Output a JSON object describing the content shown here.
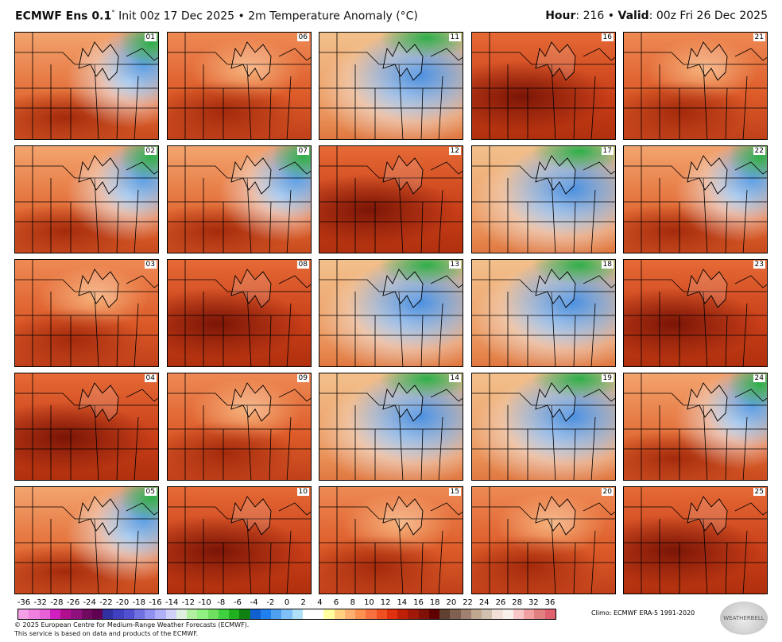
{
  "header": {
    "model": "ECMWF Ens 0.1",
    "degree": "°",
    "init": "Init 00z 17 Dec 2025",
    "sep": "•",
    "field": "2m Temperature Anomaly (°C)",
    "hour_label": "Hour",
    "hour": "216",
    "valid_label": "Valid",
    "valid": "00z Fri 26 Dec 2025"
  },
  "members": [
    {
      "id": "01",
      "style": "coolne"
    },
    {
      "id": "02",
      "style": "coolne"
    },
    {
      "id": "03",
      "style": "warm"
    },
    {
      "id": "04",
      "style": "hot"
    },
    {
      "id": "05",
      "style": "coolne"
    },
    {
      "id": "06",
      "style": "warm"
    },
    {
      "id": "07",
      "style": "coolne"
    },
    {
      "id": "08",
      "style": "hot"
    },
    {
      "id": "09",
      "style": "warm"
    },
    {
      "id": "10",
      "style": "hot"
    },
    {
      "id": "11",
      "style": "cold"
    },
    {
      "id": "12",
      "style": "hot"
    },
    {
      "id": "13",
      "style": "cold"
    },
    {
      "id": "14",
      "style": "cold"
    },
    {
      "id": "15",
      "style": "warm"
    },
    {
      "id": "16",
      "style": "hot"
    },
    {
      "id": "17",
      "style": "cold"
    },
    {
      "id": "18",
      "style": "cold"
    },
    {
      "id": "19",
      "style": "cold"
    },
    {
      "id": "20",
      "style": "warm"
    },
    {
      "id": "21",
      "style": "warm"
    },
    {
      "id": "22",
      "style": "coolne"
    },
    {
      "id": "23",
      "style": "hot"
    },
    {
      "id": "24",
      "style": "coolne"
    },
    {
      "id": "25",
      "style": "hot"
    }
  ],
  "colorbar": {
    "labels": [
      "-36",
      "-32",
      "-28",
      "-26",
      "-24",
      "-22",
      "-20",
      "-18",
      "-16",
      "-14",
      "-12",
      "-10",
      "-8",
      "-6",
      "-4",
      "-2",
      "0",
      "2",
      "4",
      "6",
      "8",
      "10",
      "12",
      "14",
      "16",
      "18",
      "20",
      "22",
      "24",
      "26",
      "28",
      "32",
      "36"
    ],
    "colors": [
      "#f3a0e6",
      "#f080e0",
      "#e860d8",
      "#d020c0",
      "#b01090",
      "#901080",
      "#700a60",
      "#600050",
      "#3030a0",
      "#4040c0",
      "#5050d0",
      "#7070e0",
      "#9090f0",
      "#b0b0f8",
      "#d0d0f8",
      "#e0f0e0",
      "#b0f0a0",
      "#90f080",
      "#70e060",
      "#40d040",
      "#20b020",
      "#108010",
      "#1060d0",
      "#2080f0",
      "#50a0f0",
      "#80c0f8",
      "#b0e0f8",
      "#ffffff",
      "#ffffff",
      "#ffffa0",
      "#ffd080",
      "#ffb070",
      "#ff9050",
      "#f87040",
      "#f05020",
      "#e03010",
      "#c02008",
      "#a01808",
      "#801008",
      "#600000",
      "#604030",
      "#806050",
      "#a08070",
      "#c0a890",
      "#d0c0b0",
      "#f0e0d8",
      "#f8f0ea",
      "#f8c8c8",
      "#f0a0a0",
      "#e08080",
      "#e06070"
    ]
  },
  "footer": {
    "copyright": "© 2025 European Centre for Medium-Range Weather Forecasts (ECMWF).",
    "service": "This service is based on data and products of the ECMWF.",
    "climo": "Climo: ECMWF ERA-5 1991-2020",
    "logo": "WEATHERBELL"
  }
}
